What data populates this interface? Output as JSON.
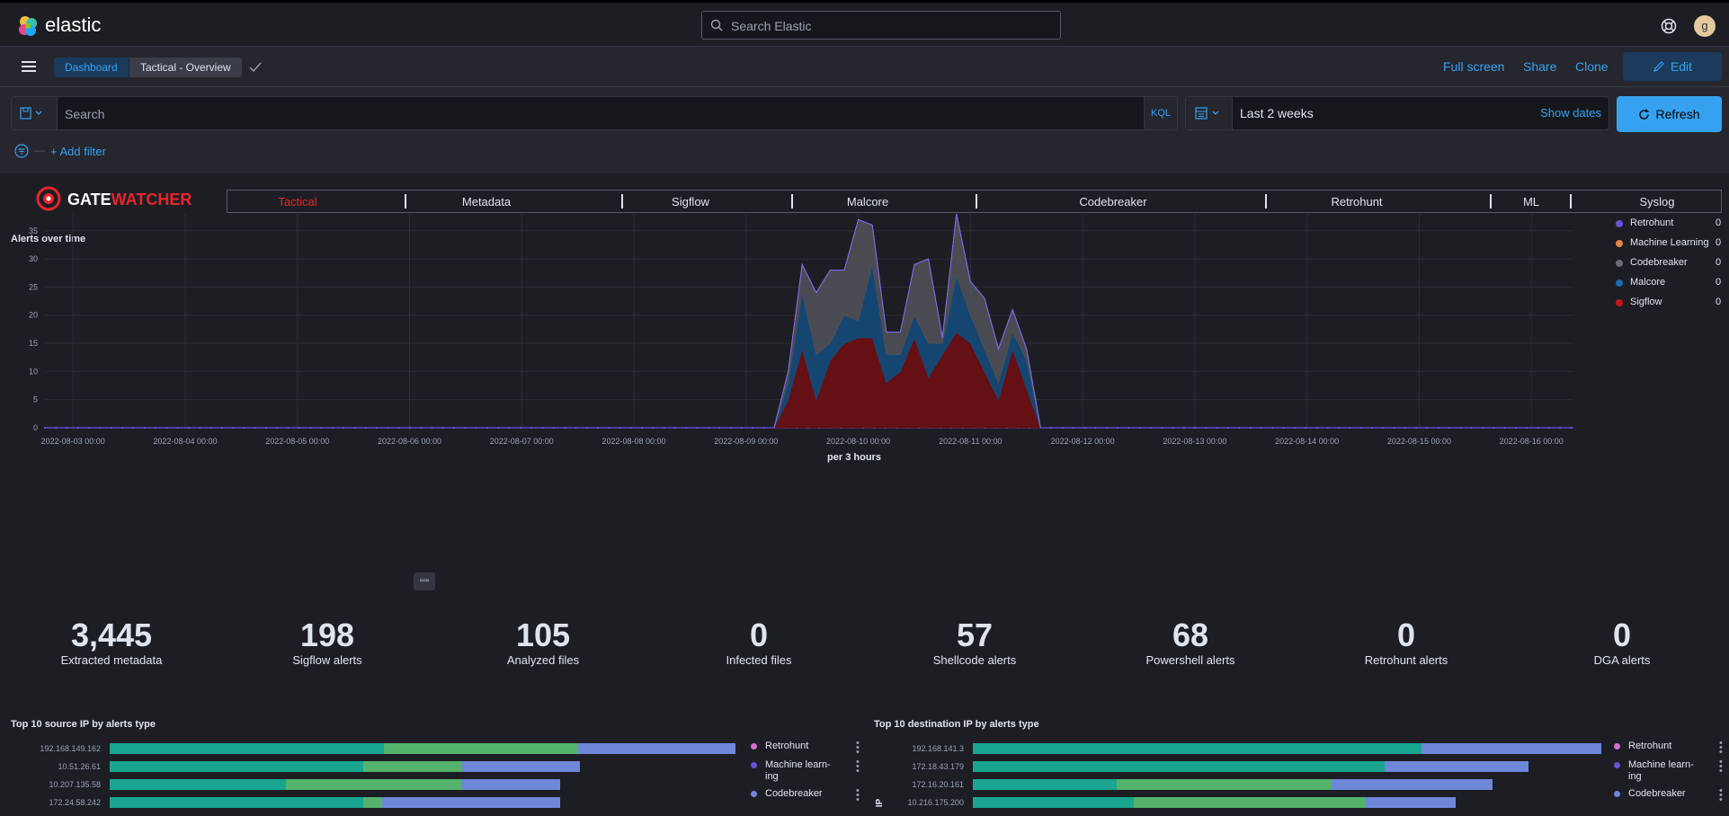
{
  "header": {
    "logo_text": "elastic",
    "search_placeholder": "Search Elastic",
    "avatar_initial": "g"
  },
  "nav": {
    "breadcrumb_root": "Dashboard",
    "breadcrumb_current": "Tactical - Overview",
    "full_screen": "Full screen",
    "share": "Share",
    "clone": "Clone",
    "edit": "Edit"
  },
  "query": {
    "search_placeholder": "Search",
    "language": "KQL",
    "time_range": "Last 2 weeks",
    "show_dates": "Show dates",
    "refresh": "Refresh",
    "add_filter": "+ Add filter"
  },
  "brand": {
    "name_prefix": "GATE",
    "name_suffix": "WATCHER"
  },
  "tabs": [
    {
      "label": "Tactical",
      "active": true
    },
    {
      "label": "Metadata",
      "active": false
    },
    {
      "label": "Sigflow",
      "active": false
    },
    {
      "label": "Malcore",
      "active": false
    },
    {
      "label": "Codebreaker",
      "active": false
    },
    {
      "label": "Retrohunt",
      "active": false
    },
    {
      "label": "ML",
      "active": false
    },
    {
      "label": "Syslog",
      "active": false
    }
  ],
  "alerts_chart_title": "Alerts over time",
  "chart_data": {
    "type": "area",
    "title": "Alerts over time",
    "xlabel": "per 3 hours",
    "ylabel": "",
    "ylim": [
      0,
      38
    ],
    "yticks": [
      0,
      5,
      10,
      15,
      20,
      25,
      30,
      35
    ],
    "x_tick_labels": [
      "2022-08-03 00:00",
      "2022-08-04 00:00",
      "2022-08-05 00:00",
      "2022-08-06 00:00",
      "2022-08-07 00:00",
      "2022-08-08 00:00",
      "2022-08-09 00:00",
      "2022-08-10 00:00",
      "2022-08-11 00:00",
      "2022-08-12 00:00",
      "2022-08-13 00:00",
      "2022-08-14 00:00",
      "2022-08-15 00:00",
      "2022-08-16 00:00"
    ],
    "x_start": "2022-08-02 18:00",
    "x_end": "2022-08-16 09:00",
    "stacked": true,
    "grid": true,
    "legend": "right",
    "x": [
      "2022-08-09 06:00",
      "2022-08-09 09:00",
      "2022-08-09 12:00",
      "2022-08-09 15:00",
      "2022-08-09 18:00",
      "2022-08-09 21:00",
      "2022-08-10 00:00",
      "2022-08-10 03:00",
      "2022-08-10 06:00",
      "2022-08-10 09:00",
      "2022-08-10 12:00",
      "2022-08-10 15:00",
      "2022-08-10 18:00",
      "2022-08-10 21:00",
      "2022-08-11 00:00",
      "2022-08-11 03:00",
      "2022-08-11 06:00",
      "2022-08-11 09:00",
      "2022-08-11 12:00",
      "2022-08-11 15:00"
    ],
    "series": [
      {
        "name": "Sigflow",
        "color": "#6a0f14",
        "values": [
          0,
          5,
          14,
          5,
          12,
          15,
          16,
          16,
          8,
          10,
          16,
          9,
          13,
          17,
          15,
          10,
          5,
          14,
          7,
          0
        ]
      },
      {
        "name": "Malcore",
        "color": "#144a78",
        "values": [
          0,
          3,
          10,
          8,
          3,
          5,
          3,
          13,
          5,
          3,
          4,
          6,
          2,
          10,
          5,
          4,
          3,
          3,
          5,
          0
        ]
      },
      {
        "name": "Codebreaker",
        "color": "#4e4f57",
        "values": [
          0,
          2,
          5,
          11,
          13,
          8,
          18,
          7,
          4,
          4,
          9,
          15,
          1,
          11,
          6,
          9,
          6,
          4,
          2,
          0
        ]
      },
      {
        "name": "Machine Learning",
        "color": "#e7864d",
        "values": [
          0,
          0,
          0,
          0,
          0,
          0,
          0,
          0,
          0,
          0,
          0,
          0,
          0,
          0,
          0,
          0,
          0,
          0,
          0,
          0
        ]
      },
      {
        "name": "Retrohunt",
        "color": "#6453d8",
        "values": [
          0,
          0,
          0,
          0,
          0,
          0,
          0,
          0,
          0,
          0,
          0,
          0,
          0,
          0,
          0,
          0,
          0,
          0,
          0,
          0
        ]
      }
    ],
    "legend_entries": [
      {
        "name": "Retrohunt",
        "color": "#6453d8",
        "value": "0"
      },
      {
        "name": "Machine Learning",
        "color": "#e7864d",
        "value": "0"
      },
      {
        "name": "Codebreaker",
        "color": "#6a6b73",
        "value": "0"
      },
      {
        "name": "Malcore",
        "color": "#1a6cb3",
        "value": "0"
      },
      {
        "name": "Sigflow",
        "color": "#c8141c",
        "value": "0"
      }
    ]
  },
  "metrics": [
    {
      "value": "3,445",
      "label": "Extracted metadata"
    },
    {
      "value": "198",
      "label": "Sigflow alerts"
    },
    {
      "value": "105",
      "label": "Analyzed files"
    },
    {
      "value": "0",
      "label": "Infected files"
    },
    {
      "value": "57",
      "label": "Shellcode alerts"
    },
    {
      "value": "68",
      "label": "Powershell alerts"
    },
    {
      "value": "0",
      "label": "Retrohunt alerts"
    },
    {
      "value": "0",
      "label": "DGA alerts"
    }
  ],
  "src_ip_title": "Top 10 source IP by alerts type",
  "dst_ip_title": "Top 10 destination IP by alerts type",
  "bar_colors": {
    "teal": "#1aa591",
    "green": "#54b36a",
    "blue": "#6f87d8"
  },
  "src_ip": [
    {
      "ip": "192.168.149.162",
      "segments": [
        148,
        105,
        85
      ]
    },
    {
      "ip": "10.51.26.61",
      "segments": [
        137,
        53,
        64
      ]
    },
    {
      "ip": "10.207.135.58",
      "segments": [
        95,
        95,
        53
      ]
    },
    {
      "ip": "172.24.58.242",
      "segments": [
        137,
        10,
        96
      ]
    }
  ],
  "dst_ip": [
    {
      "ip": "192.168.141.3",
      "segments": [
        240,
        0,
        96
      ]
    },
    {
      "ip": "172.18.43.179",
      "segments": [
        220,
        0,
        77
      ]
    },
    {
      "ip": "172.16.20.161",
      "segments": [
        77,
        115,
        86
      ]
    },
    {
      "ip": "10.216.175.200",
      "segments": [
        86,
        124,
        48
      ]
    }
  ],
  "ip_legend": [
    {
      "name": "Retrohunt",
      "color": "#d36fcf"
    },
    {
      "name": "Machine learn-\ning",
      "color": "#6453d8"
    },
    {
      "name": "Codebreaker",
      "color": "#6f87d8"
    }
  ],
  "dst_axis_label": "IP"
}
